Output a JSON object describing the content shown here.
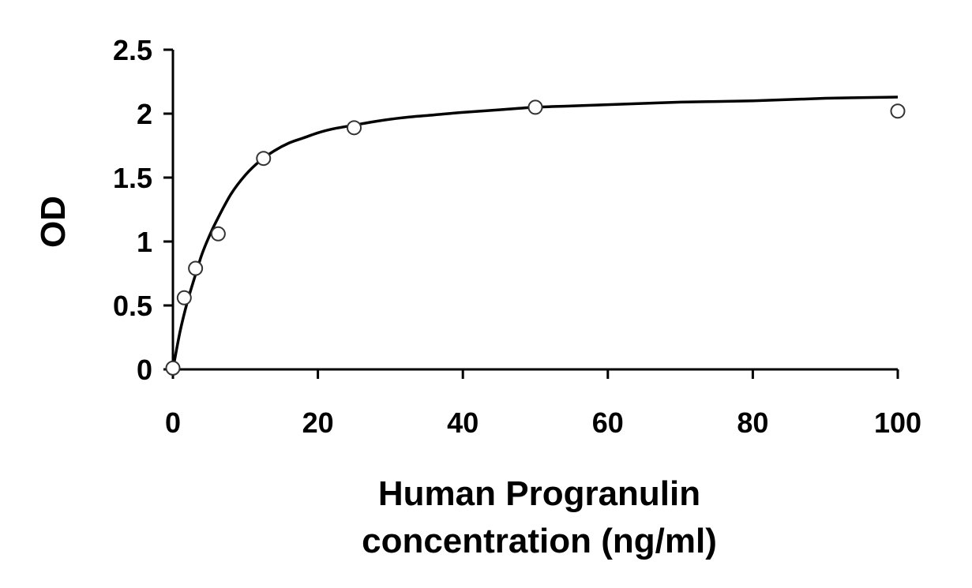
{
  "chart_data": {
    "type": "scatter",
    "title": "",
    "xlabel_lines": [
      "Human Progranulin",
      "concentration (ng/ml)"
    ],
    "ylabel": "OD",
    "xlim": [
      0,
      100
    ],
    "ylim": [
      0,
      2.5
    ],
    "x_ticks": [
      0,
      20,
      40,
      60,
      80,
      100
    ],
    "x_tick_labels": [
      "0",
      "20",
      "40",
      "60",
      "80",
      "100"
    ],
    "y_ticks": [
      0,
      0.5,
      1,
      1.5,
      2,
      2.5
    ],
    "y_tick_labels": [
      "0",
      "0.5",
      "1",
      "1.5",
      "2",
      "2.5"
    ],
    "grid": false,
    "legend": "none",
    "series": [
      {
        "marker": "open-circle",
        "x": [
          0,
          1.56,
          3.12,
          6.25,
          12.5,
          25,
          50,
          100
        ],
        "y": [
          0.01,
          0.56,
          0.79,
          1.06,
          1.65,
          1.89,
          2.05,
          2.02
        ]
      }
    ],
    "fit_curve": {
      "x": [
        0,
        1,
        2,
        3,
        4,
        5,
        6,
        8,
        10,
        12,
        14,
        16,
        18,
        20,
        22,
        25,
        28,
        32,
        36,
        40,
        45,
        50,
        55,
        60,
        70,
        80,
        90,
        100
      ],
      "y": [
        0.0,
        0.3,
        0.53,
        0.72,
        0.9,
        1.04,
        1.16,
        1.37,
        1.52,
        1.63,
        1.71,
        1.77,
        1.81,
        1.85,
        1.88,
        1.91,
        1.94,
        1.97,
        1.99,
        2.01,
        2.03,
        2.05,
        2.06,
        2.07,
        2.09,
        2.1,
        2.12,
        2.13
      ]
    }
  },
  "colors": {
    "axis": "#000000",
    "marker_stroke": "#333333",
    "curve": "#000000"
  }
}
